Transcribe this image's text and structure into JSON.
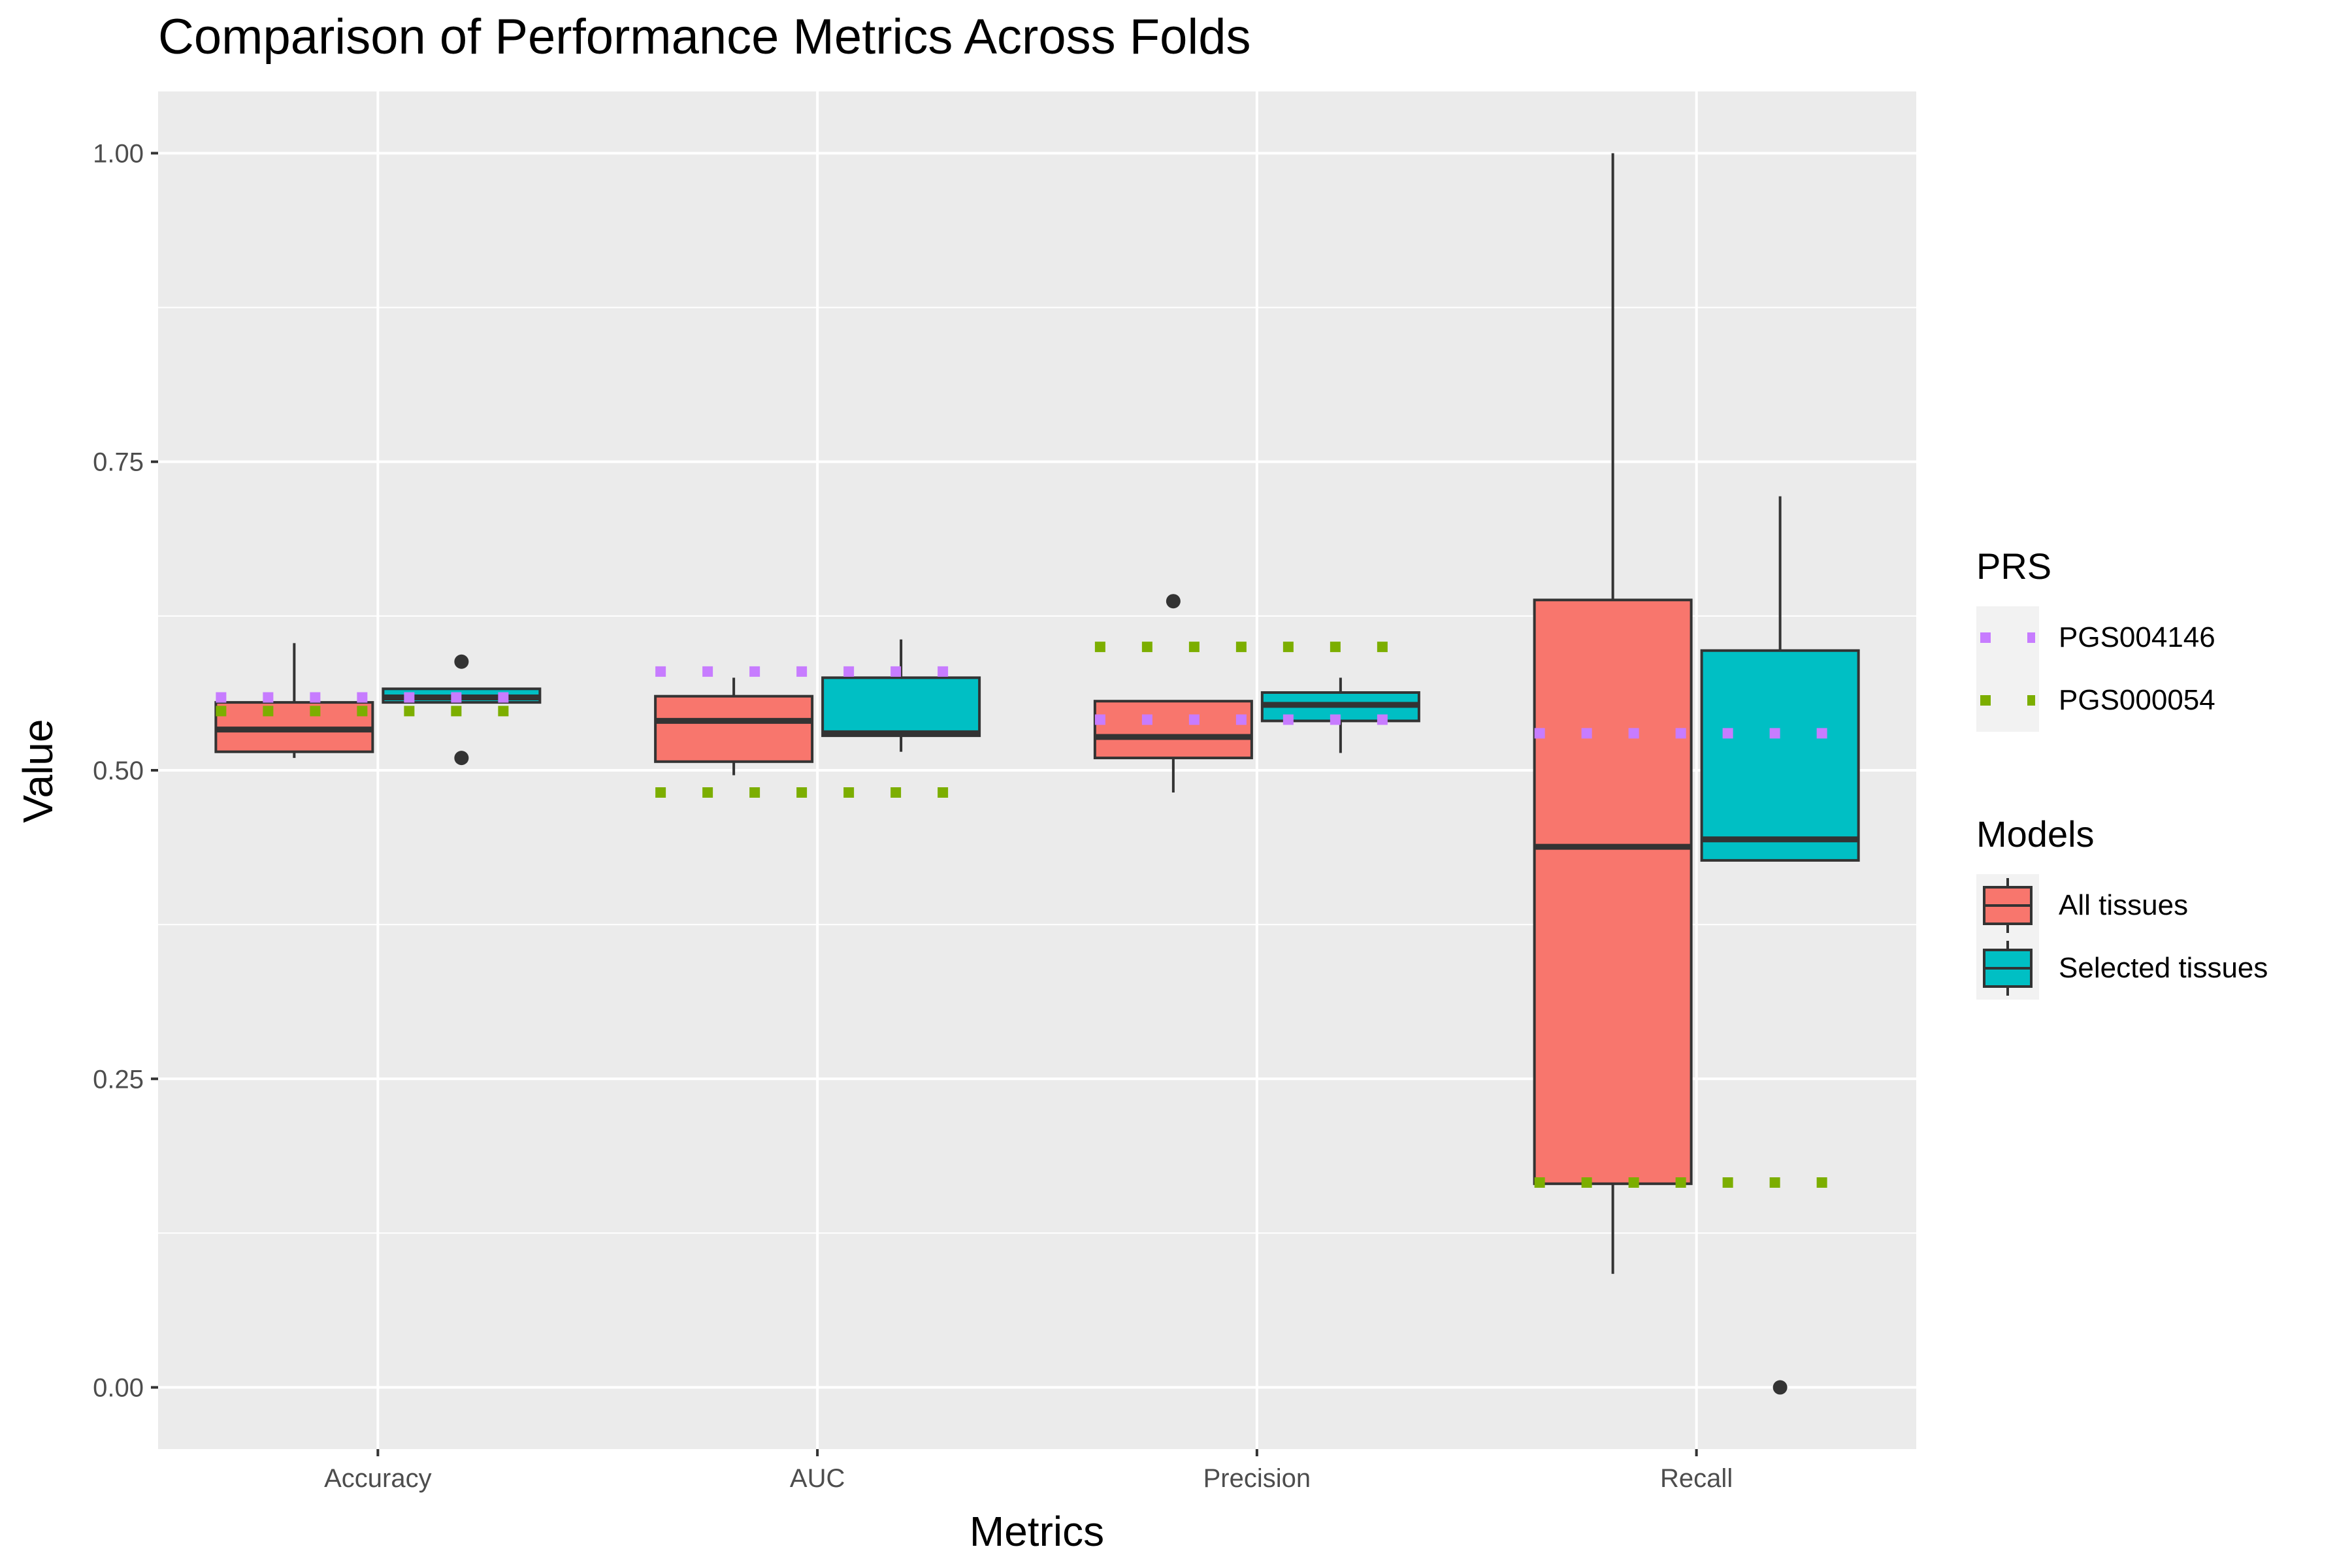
{
  "chart_data": {
    "type": "boxplot",
    "title": "Comparison of Performance Metrics Across Folds",
    "xlabel": "Metrics",
    "ylabel": "Value",
    "categories": [
      "Accuracy",
      "AUC",
      "Precision",
      "Recall"
    ],
    "ylim": [
      -0.05,
      1.05
    ],
    "yticks": [
      0.0,
      0.25,
      0.5,
      0.75,
      1.0
    ],
    "ytick_labels": [
      "0.00",
      "0.25",
      "0.50",
      "0.75",
      "1.00"
    ],
    "grid": true,
    "series": [
      {
        "name": "All tissues",
        "color": "#F8766D",
        "boxes": [
          {
            "category": "Accuracy",
            "whisker_low": 0.51,
            "q1": 0.515,
            "median": 0.533,
            "q3": 0.555,
            "whisker_high": 0.603,
            "outliers": []
          },
          {
            "category": "AUC",
            "whisker_low": 0.496,
            "q1": 0.507,
            "median": 0.54,
            "q3": 0.56,
            "whisker_high": 0.575,
            "outliers": []
          },
          {
            "category": "Precision",
            "whisker_low": 0.482,
            "q1": 0.51,
            "median": 0.527,
            "q3": 0.556,
            "whisker_high": 0.556,
            "outliers": [
              0.637
            ]
          },
          {
            "category": "Recall",
            "whisker_low": 0.092,
            "q1": 0.165,
            "median": 0.438,
            "q3": 0.638,
            "whisker_high": 1.0,
            "outliers": []
          }
        ]
      },
      {
        "name": "Selected tissues",
        "color": "#00BFC4",
        "boxes": [
          {
            "category": "Accuracy",
            "whisker_low": 0.555,
            "q1": 0.555,
            "median": 0.559,
            "q3": 0.566,
            "whisker_high": 0.566,
            "outliers": [
              0.588,
              0.51
            ]
          },
          {
            "category": "AUC",
            "whisker_low": 0.515,
            "q1": 0.528,
            "median": 0.53,
            "q3": 0.575,
            "whisker_high": 0.606,
            "outliers": []
          },
          {
            "category": "Precision",
            "whisker_low": 0.514,
            "q1": 0.54,
            "median": 0.553,
            "q3": 0.563,
            "whisker_high": 0.575,
            "outliers": []
          },
          {
            "category": "Recall",
            "whisker_low": 0.427,
            "q1": 0.427,
            "median": 0.444,
            "q3": 0.597,
            "whisker_high": 0.722,
            "outliers": [
              0.0
            ]
          }
        ]
      }
    ],
    "reference_lines": [
      {
        "name": "PGS004146",
        "color": "#C77CFF",
        "values": {
          "Accuracy": 0.559,
          "AUC": 0.58,
          "Precision": 0.541,
          "Recall": 0.53
        }
      },
      {
        "name": "PGS000054",
        "color": "#7CAE00",
        "values": {
          "Accuracy": 0.548,
          "AUC": 0.482,
          "Precision": 0.6,
          "Recall": 0.166
        }
      }
    ],
    "legends": [
      {
        "title": "PRS",
        "position": "right",
        "items": [
          "PGS004146",
          "PGS000054"
        ]
      },
      {
        "title": "Models",
        "position": "right",
        "items": [
          "All tissues",
          "Selected tissues"
        ]
      }
    ]
  }
}
